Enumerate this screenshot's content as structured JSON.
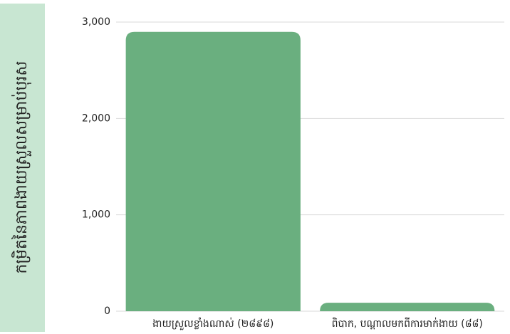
{
  "chart_data": {
    "type": "bar",
    "y_label": "កម្រិតនៃភាពងាយស្រួលសម្រាប់បុរស",
    "categories": [
      "ងាយស្រួលខ្លាំងណាស់ (២៨៩៨)",
      "ពិបាក, បណ្ដាលមកពីការមាក់ងាយ (៨៨)"
    ],
    "values": [
      2898,
      88
    ],
    "color": "#6aaf7f",
    "ylim": [
      0,
      3000
    ],
    "yticks": [
      0,
      {
        "value": 1000,
        "label": "1,000"
      },
      {
        "value": 2000,
        "label": "2,000"
      },
      {
        "value": 3000,
        "label": "3,000"
      }
    ],
    "grid": true
  }
}
